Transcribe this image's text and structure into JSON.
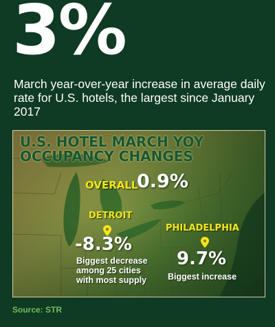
{
  "headline": {
    "big_number": "3%",
    "description": "March year-over-year increase in average daily rate for U.S. hotels, the largest since January 2017"
  },
  "map_panel": {
    "title_line1": "U.S. HOTEL MARCH YOY",
    "title_line2": "OCCUPANCY CHANGES",
    "overall": {
      "label": "OVERALL",
      "value": "0.9%"
    },
    "detroit": {
      "label": "DETROIT",
      "value": "-8.3%",
      "caption_line1": "Biggest decrease",
      "caption_line2": "among 25 cities",
      "caption_line3": "with most supply"
    },
    "philadelphia": {
      "label": "PHILADELPHIA",
      "value": "9.7%",
      "caption": "Biggest increase"
    }
  },
  "source": "Source: STR",
  "colors": {
    "background": "#0f3a23",
    "title_green": "#1a5530",
    "label_yellow": "#f6e51a",
    "source_green": "#6fbf5c"
  }
}
